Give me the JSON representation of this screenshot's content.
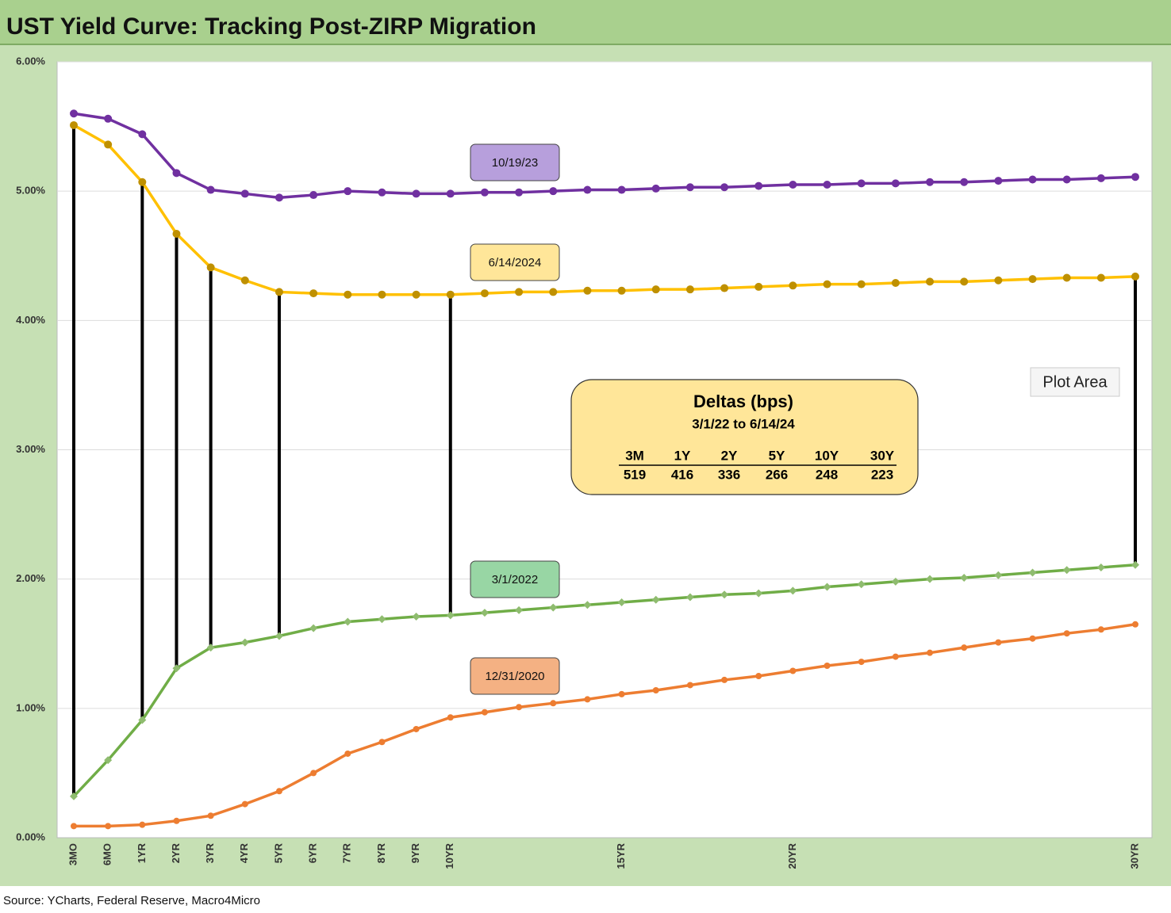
{
  "chart_data": {
    "type": "line",
    "title": "UST Yield Curve: Tracking Post-ZIRP Migration",
    "source": "Source: YCharts, Federal Reserve, Macro4Micro",
    "tooltip": "Plot Area",
    "categories": [
      "3MO",
      "6MO",
      "1YR",
      "2YR",
      "3YR",
      "4YR",
      "5YR",
      "6YR",
      "7YR",
      "8YR",
      "9YR",
      "10YR",
      null,
      null,
      null,
      null,
      "15YR",
      null,
      null,
      null,
      null,
      "20YR",
      null,
      null,
      null,
      null,
      null,
      null,
      null,
      null,
      null,
      "30YR"
    ],
    "ylim": [
      0,
      6
    ],
    "yticks": [
      {
        "value": 0,
        "label": "0.00%"
      },
      {
        "value": 1,
        "label": "1.00%"
      },
      {
        "value": 2,
        "label": "2.00%"
      },
      {
        "value": 3,
        "label": "3.00%"
      },
      {
        "value": 4,
        "label": "4.00%"
      },
      {
        "value": 5,
        "label": "5.00%"
      },
      {
        "value": 6,
        "label": "6.00%"
      }
    ],
    "grid": true,
    "series": [
      {
        "name": "10/19/23",
        "color": "#7030a0",
        "label_fill": "#b79fdc",
        "values": [
          5.6,
          5.56,
          5.44,
          5.14,
          5.01,
          4.98,
          4.95,
          4.97,
          5.0,
          4.99,
          4.98,
          4.98,
          4.99,
          4.99,
          5.0,
          5.01,
          5.01,
          5.02,
          5.03,
          5.03,
          5.04,
          5.05,
          5.05,
          5.06,
          5.06,
          5.07,
          5.07,
          5.08,
          5.09,
          5.09,
          5.1,
          5.11
        ]
      },
      {
        "name": "6/14/2024",
        "color": "#ffc000",
        "marker_color": "#bf9000",
        "label_fill": "#ffe699",
        "values": [
          5.51,
          5.36,
          5.07,
          4.67,
          4.41,
          4.31,
          4.22,
          4.21,
          4.2,
          4.2,
          4.2,
          4.2,
          4.21,
          4.22,
          4.22,
          4.23,
          4.23,
          4.24,
          4.24,
          4.25,
          4.26,
          4.27,
          4.28,
          4.28,
          4.29,
          4.3,
          4.3,
          4.31,
          4.32,
          4.33,
          4.33,
          4.34
        ]
      },
      {
        "name": "3/1/2022",
        "color": "#70ad47",
        "marker_color": "#8fbc6f",
        "label_fill": "#98d6a4",
        "values": [
          0.32,
          0.6,
          0.91,
          1.31,
          1.47,
          1.51,
          1.56,
          1.62,
          1.67,
          1.69,
          1.71,
          1.72,
          1.74,
          1.76,
          1.78,
          1.8,
          1.82,
          1.84,
          1.86,
          1.88,
          1.89,
          1.91,
          1.94,
          1.96,
          1.98,
          2.0,
          2.01,
          2.03,
          2.05,
          2.07,
          2.09,
          2.11
        ]
      },
      {
        "name": "12/31/2020",
        "color": "#ed7d31",
        "label_fill": "#f4b183",
        "values": [
          0.09,
          0.09,
          0.1,
          0.13,
          0.17,
          0.26,
          0.36,
          0.5,
          0.65,
          0.74,
          0.84,
          0.93,
          0.97,
          1.01,
          1.04,
          1.07,
          1.11,
          1.14,
          1.18,
          1.22,
          1.25,
          1.29,
          1.33,
          1.36,
          1.4,
          1.43,
          1.47,
          1.51,
          1.54,
          1.58,
          1.61,
          1.65
        ]
      }
    ],
    "deltas": {
      "title": "Deltas (bps)",
      "subtitle": "3/1/22 to 6/14/24",
      "columns": [
        "3M",
        "1Y",
        "2Y",
        "5Y",
        "10Y",
        "30Y"
      ],
      "values": [
        519,
        416,
        336,
        266,
        248,
        223
      ]
    }
  }
}
